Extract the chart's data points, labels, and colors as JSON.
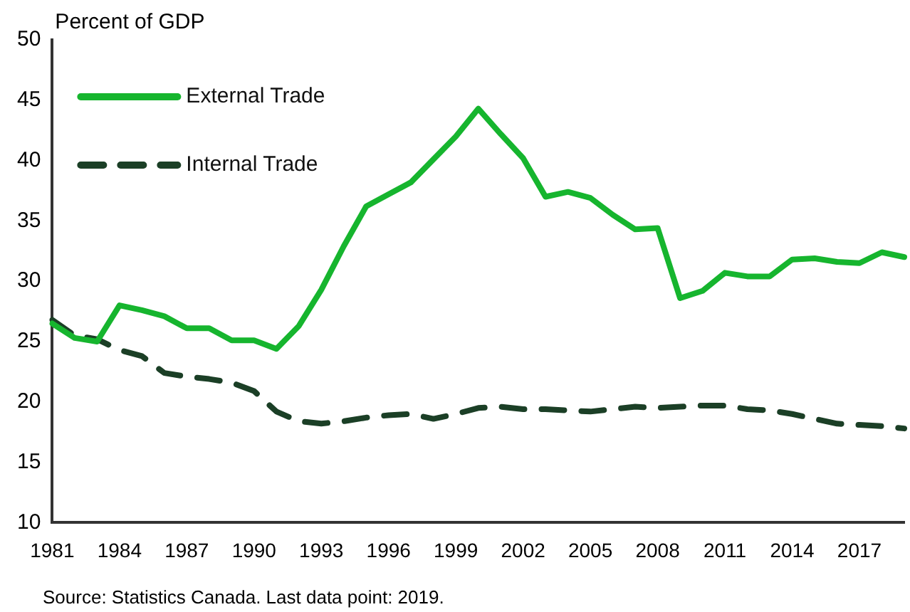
{
  "chart_data": {
    "type": "line",
    "ylabel": "Percent of GDP",
    "categories": [
      "1981",
      null,
      null,
      "1984",
      null,
      null,
      "1987",
      null,
      null,
      "1990",
      null,
      null,
      "1993",
      null,
      null,
      "1996",
      null,
      null,
      "1999",
      null,
      null,
      "2002",
      null,
      null,
      "2005",
      null,
      null,
      "2008",
      null,
      null,
      "2011",
      null,
      null,
      "2014",
      null,
      null,
      "2017",
      null,
      null
    ],
    "series": [
      {
        "name": "External Trade",
        "color": "#16b52e",
        "line_style": "solid",
        "values": [
          26.5,
          25.3,
          25.0,
          28.0,
          27.6,
          27.1,
          26.1,
          26.1,
          25.1,
          25.1,
          24.4,
          26.3,
          29.3,
          32.9,
          36.2,
          37.2,
          38.2,
          40.1,
          42.0,
          44.3,
          42.2,
          40.2,
          37.0,
          37.4,
          36.9,
          35.5,
          34.3,
          34.4,
          28.6,
          29.2,
          30.7,
          30.4,
          30.4,
          31.8,
          31.9,
          31.6,
          31.5,
          32.4,
          32.0
        ]
      },
      {
        "name": "Internal Trade",
        "color": "#1b3f26",
        "line_style": "dashed",
        "values": [
          26.8,
          25.5,
          25.2,
          24.3,
          23.8,
          22.4,
          22.1,
          21.9,
          21.6,
          20.9,
          19.2,
          18.4,
          18.2,
          18.4,
          18.7,
          18.9,
          19.0,
          18.6,
          19.0,
          19.5,
          19.6,
          19.4,
          19.4,
          19.3,
          19.2,
          19.4,
          19.6,
          19.5,
          19.6,
          19.7,
          19.7,
          19.4,
          19.3,
          19.0,
          18.6,
          18.2,
          18.1,
          18.0,
          17.8
        ]
      }
    ],
    "ylim": [
      10,
      50
    ],
    "yticks": [
      10,
      15,
      20,
      25,
      30,
      35,
      40,
      45,
      50
    ],
    "grid": false,
    "legend": "top left",
    "marker": "none",
    "annotations": [
      "Source: Statistics Canada. Last data point: 2019."
    ]
  }
}
